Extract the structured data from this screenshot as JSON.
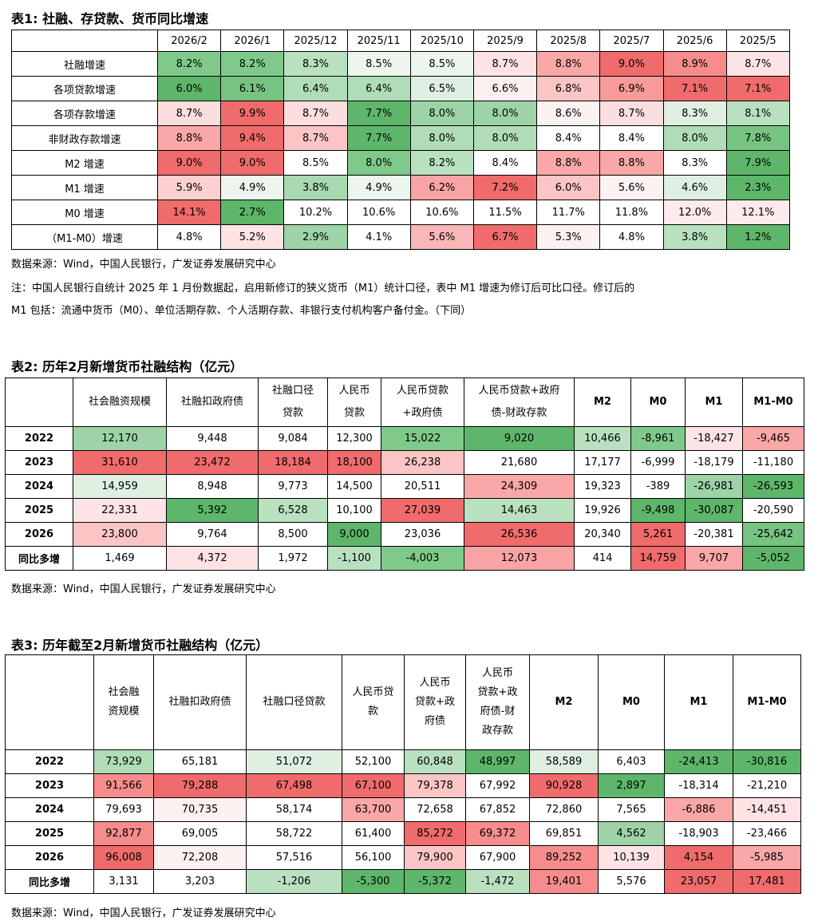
{
  "table1": {
    "title": "表1:  社融、存贷款、货币同比增速",
    "headers": [
      "2026/2",
      "2026/1",
      "2025/12",
      "2025/11",
      "2025/10",
      "2025/9",
      "2025/8",
      "2025/7",
      "2025/6",
      "2025/5"
    ],
    "rows": [
      {
        "label": "社融增速",
        "values": [
          "8.2%",
          "8.2%",
          "8.3%",
          "8.5%",
          "8.5%",
          "8.7%",
          "8.8%",
          "9.0%",
          "8.9%",
          "8.7%"
        ],
        "colors": [
          "#7fca8a",
          "#7fca8a",
          "#b9e1c0",
          "#edf6ee",
          "#edf6ee",
          "#fde3e3",
          "#faa7a7",
          "#f06b6b",
          "#f68c8c",
          "#fde3e3"
        ]
      },
      {
        "label": "各项贷款增速",
        "values": [
          "6.0%",
          "6.1%",
          "6.4%",
          "6.4%",
          "6.5%",
          "6.6%",
          "6.8%",
          "6.9%",
          "7.1%",
          "7.1%"
        ],
        "colors": [
          "#5db66a",
          "#76c382",
          "#b0dcb8",
          "#b0dcb8",
          "#dff0e2",
          "#fdf0f0",
          "#fcc5c5",
          "#f99a9a",
          "#f06b6b",
          "#f06b6b"
        ]
      },
      {
        "label": "各项存款增速",
        "values": [
          "8.7%",
          "9.9%",
          "8.7%",
          "7.7%",
          "8.0%",
          "8.0%",
          "8.6%",
          "8.7%",
          "8.3%",
          "8.1%"
        ],
        "colors": [
          "#fcdede",
          "#f06b6b",
          "#fcdede",
          "#5db66a",
          "#9dd3a7",
          "#9dd3a7",
          "#fdf2f2",
          "#fcdede",
          "#dff0e2",
          "#b9e1c0"
        ]
      },
      {
        "label": "非财政存款增速",
        "values": [
          "8.8%",
          "9.4%",
          "8.7%",
          "7.7%",
          "8.0%",
          "8.0%",
          "8.4%",
          "8.4%",
          "8.0%",
          "7.8%"
        ],
        "colors": [
          "#faa7a7",
          "#f06b6b",
          "#fcc5c5",
          "#5db66a",
          "#b0dcb8",
          "#b0dcb8",
          "#ffffff",
          "#ffffff",
          "#b0dcb8",
          "#76c382"
        ]
      },
      {
        "label": "M2 增速",
        "values": [
          "9.0%",
          "9.0%",
          "8.5%",
          "8.0%",
          "8.2%",
          "8.4%",
          "8.8%",
          "8.8%",
          "8.3%",
          "7.9%"
        ],
        "colors": [
          "#f06b6b",
          "#f06b6b",
          "#ffffff",
          "#7fca8a",
          "#b9e1c0",
          "#ffffff",
          "#faa7a7",
          "#faa7a7",
          "#ffffff",
          "#5db66a"
        ]
      },
      {
        "label": "M1 增速",
        "values": [
          "5.9%",
          "4.9%",
          "3.8%",
          "4.9%",
          "6.2%",
          "7.2%",
          "6.0%",
          "5.6%",
          "4.6%",
          "2.3%"
        ],
        "colors": [
          "#fcd0d0",
          "#edf6ee",
          "#a8d9b1",
          "#edf6ee",
          "#f9a4a4",
          "#f06b6b",
          "#fcc5c5",
          "#fdf2f2",
          "#dff0e2",
          "#5db66a"
        ]
      },
      {
        "label": "M0 增速",
        "values": [
          "14.1%",
          "2.7%",
          "10.2%",
          "10.6%",
          "10.6%",
          "11.5%",
          "11.7%",
          "11.8%",
          "12.0%",
          "12.1%"
        ],
        "colors": [
          "#f06b6b",
          "#5db66a",
          "#ffffff",
          "#ffffff",
          "#ffffff",
          "#ffffff",
          "#ffffff",
          "#ffffff",
          "#fdeaea",
          "#fdeaea"
        ]
      },
      {
        "label": "（M1-M0）增速",
        "values": [
          "4.8%",
          "5.2%",
          "2.9%",
          "4.1%",
          "5.6%",
          "6.7%",
          "5.3%",
          "4.8%",
          "3.8%",
          "1.2%"
        ],
        "colors": [
          "#ffffff",
          "#fde3e3",
          "#9dd3a7",
          "#ffffff",
          "#fab7b7",
          "#f06b6b",
          "#fdf0f0",
          "#ffffff",
          "#b9e1c0",
          "#5db66a"
        ]
      }
    ]
  },
  "note_source": "数据来源：Wind，中国人民银行，广发证券发展研究中心",
  "note_line1": "注：中国人民银行自统计 2025 年 1 月份数据起，启用新修订的狭义货币（M1）统计口径，表中 M1 增速为修订后可比口径。修订后的",
  "note_line2": "M1 包括：流通中货币（M0）、单位活期存款、个人活期存款、非银行支付机构客户备付金。（下同）",
  "table2": {
    "title": "表2:  历年2月新增货币社融结构（亿元）",
    "headers": [
      "",
      "社会融资规模",
      "社融扣政府债",
      "社融口径\n贷款",
      "人民币\n贷款",
      "人民币贷款\n+政府债",
      "人民币贷款+政府\n债-财政存款",
      "M2",
      "M0",
      "M1",
      "M1-M0"
    ],
    "rows": [
      {
        "label": "2022",
        "values": [
          "12,170",
          "9,448",
          "9,084",
          "12,300",
          "15,022",
          "9,020",
          "10,466",
          "-8,961",
          "-18,427",
          "-9,465"
        ],
        "colors": [
          "#9dd3a7",
          "#ffffff",
          "#ffffff",
          "#ffffff",
          "#7fca8a",
          "#5db66a",
          "#b9e1c0",
          "#7fca8a",
          "#fde3e3",
          "#faa7a7"
        ]
      },
      {
        "label": "2023",
        "values": [
          "31,610",
          "23,472",
          "18,184",
          "18,100",
          "26,238",
          "21,680",
          "17,177",
          "-6,999",
          "-18,179",
          "-11,180"
        ],
        "colors": [
          "#f06b6b",
          "#f06b6b",
          "#f06b6b",
          "#f06b6b",
          "#fcc5c5",
          "#ffffff",
          "#ffffff",
          "#ffffff",
          "#ffffff",
          "#ffffff"
        ]
      },
      {
        "label": "2024",
        "values": [
          "14,959",
          "8,948",
          "9,773",
          "14,500",
          "20,511",
          "24,309",
          "19,323",
          "-389",
          "-26,981",
          "-26,593"
        ],
        "colors": [
          "#dff0e2",
          "#ffffff",
          "#ffffff",
          "#ffffff",
          "#ffffff",
          "#faa7a7",
          "#ffffff",
          "#ffffff",
          "#9dd3a7",
          "#5db66a"
        ]
      },
      {
        "label": "2025",
        "values": [
          "22,331",
          "5,392",
          "6,528",
          "10,100",
          "27,039",
          "14,463",
          "19,926",
          "-9,498",
          "-30,087",
          "-20,590"
        ],
        "colors": [
          "#fde3e3",
          "#5db66a",
          "#b9e1c0",
          "#ffffff",
          "#f06b6b",
          "#b9e1c0",
          "#ffffff",
          "#5db66a",
          "#5db66a",
          "#ffffff"
        ]
      },
      {
        "label": "2026",
        "values": [
          "23,800",
          "9,764",
          "8,500",
          "9,000",
          "23,036",
          "26,536",
          "20,340",
          "5,261",
          "-20,381",
          "-25,642"
        ],
        "colors": [
          "#fcc5c5",
          "#ffffff",
          "#ffffff",
          "#5db66a",
          "#ffffff",
          "#f06b6b",
          "#ffffff",
          "#f06b6b",
          "#ffffff",
          "#76c382"
        ]
      },
      {
        "label": "同比多增",
        "values": [
          "1,469",
          "4,372",
          "1,972",
          "-1,100",
          "-4,003",
          "12,073",
          "414",
          "14,759",
          "9,707",
          "-5,052"
        ],
        "colors": [
          "#ffffff",
          "#fde3e3",
          "#ffffff",
          "#b9e1c0",
          "#7fca8a",
          "#f9a4a4",
          "#ffffff",
          "#f06b6b",
          "#faa7a7",
          "#5db66a"
        ]
      }
    ]
  },
  "note_source2": "数据来源：Wind，中国人民银行，广发证券发展研究中心",
  "table3": {
    "title": "表3:  历年截至2月新增货币社融结构（亿元）",
    "headers": [
      "",
      "社会融\n资规模",
      "社融扣政府债",
      "社融口径贷款",
      "人民币贷\n款",
      "人民币\n贷款+政\n府债",
      "人民币\n贷款+政\n府债-财\n政存款",
      "M2",
      "M0",
      "M1",
      "M1-M0"
    ],
    "rows": [
      {
        "label": "2022",
        "values": [
          "73,929",
          "65,181",
          "51,072",
          "52,100",
          "60,848",
          "48,997",
          "58,589",
          "6,403",
          "-24,413",
          "-30,816"
        ],
        "colors": [
          "#b0dcb8",
          "#ffffff",
          "#dff0e2",
          "#ffffff",
          "#b9e1c0",
          "#5db66a",
          "#dff0e2",
          "#ffffff",
          "#5db66a",
          "#5db66a"
        ]
      },
      {
        "label": "2023",
        "values": [
          "91,566",
          "79,288",
          "67,498",
          "67,100",
          "79,378",
          "67,992",
          "90,928",
          "2,897",
          "-18,314",
          "-21,210"
        ],
        "colors": [
          "#f68c8c",
          "#f06b6b",
          "#f06b6b",
          "#f06b6b",
          "#fcc5c5",
          "#ffffff",
          "#f06b6b",
          "#5db66a",
          "#ffffff",
          "#ffffff"
        ]
      },
      {
        "label": "2024",
        "values": [
          "79,693",
          "70,735",
          "58,174",
          "63,700",
          "72,658",
          "67,852",
          "72,860",
          "7,565",
          "-6,886",
          "-14,451"
        ],
        "colors": [
          "#ffffff",
          "#fdf0f0",
          "#ffffff",
          "#faa7a7",
          "#ffffff",
          "#ffffff",
          "#ffffff",
          "#ffffff",
          "#faa7a7",
          "#fde3e3"
        ]
      },
      {
        "label": "2025",
        "values": [
          "92,877",
          "69,005",
          "58,722",
          "61,400",
          "85,272",
          "69,372",
          "69,851",
          "4,562",
          "-18,903",
          "-23,466"
        ],
        "colors": [
          "#f68c8c",
          "#ffffff",
          "#ffffff",
          "#ffffff",
          "#f06b6b",
          "#f68c8c",
          "#ffffff",
          "#9dd3a7",
          "#ffffff",
          "#ffffff"
        ]
      },
      {
        "label": "2026",
        "values": [
          "96,008",
          "72,208",
          "57,516",
          "56,100",
          "79,900",
          "67,900",
          "89,252",
          "10,139",
          "4,154",
          "-5,985"
        ],
        "colors": [
          "#f06b6b",
          "#fdf0f0",
          "#ffffff",
          "#ffffff",
          "#fcc5c5",
          "#ffffff",
          "#f68c8c",
          "#fde3e3",
          "#f06b6b",
          "#faa7a7"
        ]
      },
      {
        "label": "同比多增",
        "values": [
          "3,131",
          "3,203",
          "-1,206",
          "-5,300",
          "-5,372",
          "-1,472",
          "19,401",
          "5,576",
          "23,057",
          "17,481"
        ],
        "colors": [
          "#ffffff",
          "#ffffff",
          "#b9e1c0",
          "#5db66a",
          "#5db66a",
          "#b9e1c0",
          "#f68c8c",
          "#ffffff",
          "#f06b6b",
          "#f06b6b"
        ]
      }
    ]
  },
  "note_source3": "数据来源：Wind，中国人民银行，广发证券发展研究中心"
}
